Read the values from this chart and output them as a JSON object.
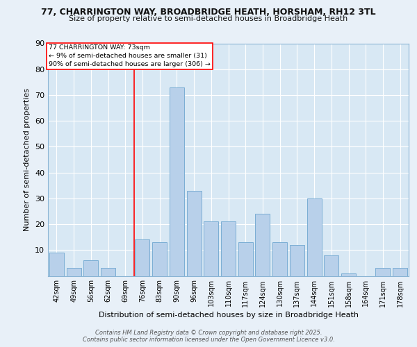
{
  "title1": "77, CHARRINGTON WAY, BROADBRIDGE HEATH, HORSHAM, RH12 3TL",
  "title2": "Size of property relative to semi-detached houses in Broadbridge Heath",
  "xlabel": "Distribution of semi-detached houses by size in Broadbridge Heath",
  "ylabel": "Number of semi-detached properties",
  "categories": [
    "42sqm",
    "49sqm",
    "56sqm",
    "62sqm",
    "69sqm",
    "76sqm",
    "83sqm",
    "90sqm",
    "96sqm",
    "103sqm",
    "110sqm",
    "117sqm",
    "124sqm",
    "130sqm",
    "137sqm",
    "144sqm",
    "151sqm",
    "158sqm",
    "164sqm",
    "171sqm",
    "178sqm"
  ],
  "values": [
    9,
    3,
    6,
    3,
    0,
    14,
    13,
    73,
    33,
    21,
    21,
    13,
    24,
    13,
    12,
    30,
    8,
    1,
    0,
    3,
    3
  ],
  "bar_color": "#b8d0ea",
  "bar_edge_color": "#7aadd4",
  "ylim": [
    0,
    90
  ],
  "yticks": [
    0,
    10,
    20,
    30,
    40,
    50,
    60,
    70,
    80,
    90
  ],
  "red_line_x": 4.5,
  "annotation_title": "77 CHARRINGTON WAY: 73sqm",
  "annotation_line1": "← 9% of semi-detached houses are smaller (31)",
  "annotation_line2": "90% of semi-detached houses are larger (306) →",
  "footer1": "Contains HM Land Registry data © Crown copyright and database right 2025.",
  "footer2": "Contains public sector information licensed under the Open Government Licence v3.0.",
  "bg_color": "#e8f0f8",
  "plot_bg_color": "#d8e8f4"
}
